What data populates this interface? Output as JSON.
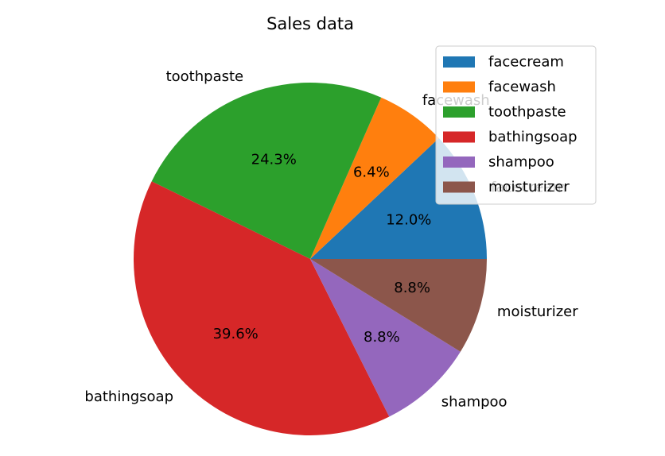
{
  "chart_data": {
    "type": "pie",
    "title": "Sales data",
    "labels": [
      "facecream",
      "facewash",
      "toothpaste",
      "bathingsoap",
      "shampoo",
      "moisturizer"
    ],
    "values": [
      12.0,
      6.4,
      24.3,
      39.6,
      8.8,
      8.8
    ],
    "percent_labels": [
      "12.0%",
      "6.4%",
      "24.3%",
      "39.6%",
      "8.8%",
      "8.8%"
    ],
    "colors": [
      "#1f77b4",
      "#ff7f0e",
      "#2ca02c",
      "#d62728",
      "#9467bd",
      "#8c564b"
    ],
    "start_angle_deg": 0,
    "direction": "counterclockwise",
    "legend": {
      "placement": "top-right",
      "entries": [
        "facecream",
        "facewash",
        "toothpaste",
        "bathingsoap",
        "shampoo",
        "moisturizer"
      ]
    }
  }
}
